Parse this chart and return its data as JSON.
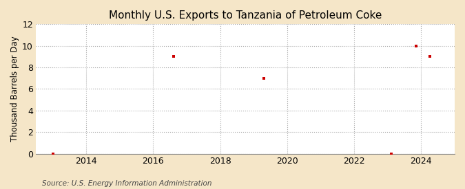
{
  "title": "Monthly U.S. Exports to Tanzania of Petroleum Coke",
  "ylabel": "Thousand Barrels per Day",
  "source": "Source: U.S. Energy Information Administration",
  "outer_background_color": "#f5e6c8",
  "plot_background_color": "#ffffff",
  "grid_color": "#aaaaaa",
  "marker_color": "#cc0000",
  "data_x": [
    2013.0,
    2016.6,
    2019.3,
    2023.1,
    2023.85,
    2024.25
  ],
  "data_y": [
    0,
    9,
    7,
    0,
    10,
    9
  ],
  "xlim": [
    2012.5,
    2025.0
  ],
  "ylim": [
    0,
    12
  ],
  "xticks": [
    2014,
    2016,
    2018,
    2020,
    2022,
    2024
  ],
  "yticks": [
    0,
    2,
    4,
    6,
    8,
    10,
    12
  ],
  "title_fontsize": 11,
  "label_fontsize": 8.5,
  "tick_fontsize": 9,
  "source_fontsize": 7.5
}
